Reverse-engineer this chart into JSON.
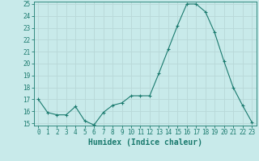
{
  "x": [
    0,
    1,
    2,
    3,
    4,
    5,
    6,
    7,
    8,
    9,
    10,
    11,
    12,
    13,
    14,
    15,
    16,
    17,
    18,
    19,
    20,
    21,
    22,
    23
  ],
  "y": [
    17.0,
    15.9,
    15.7,
    15.7,
    16.4,
    15.2,
    14.85,
    15.9,
    16.5,
    16.7,
    17.3,
    17.3,
    17.3,
    19.2,
    21.2,
    23.2,
    25.0,
    25.0,
    24.35,
    22.6,
    20.2,
    18.0,
    16.5,
    15.1
  ],
  "xlabel": "Humidex (Indice chaleur)",
  "ylim": [
    15,
    25
  ],
  "xlim": [
    -0.5,
    23.5
  ],
  "yticks": [
    15,
    16,
    17,
    18,
    19,
    20,
    21,
    22,
    23,
    24,
    25
  ],
  "xticks": [
    0,
    1,
    2,
    3,
    4,
    5,
    6,
    7,
    8,
    9,
    10,
    11,
    12,
    13,
    14,
    15,
    16,
    17,
    18,
    19,
    20,
    21,
    22,
    23
  ],
  "line_color": "#1a7a6e",
  "marker_color": "#1a7a6e",
  "bg_color": "#c8eaea",
  "grid_color": "#b8d8d8",
  "axis_color": "#1a7a6e",
  "tick_label_color": "#1a7a6e",
  "xlabel_color": "#1a7a6e",
  "xlabel_fontsize": 7,
  "tick_fontsize": 5.5,
  "ylabel_fontsize": 5.5
}
